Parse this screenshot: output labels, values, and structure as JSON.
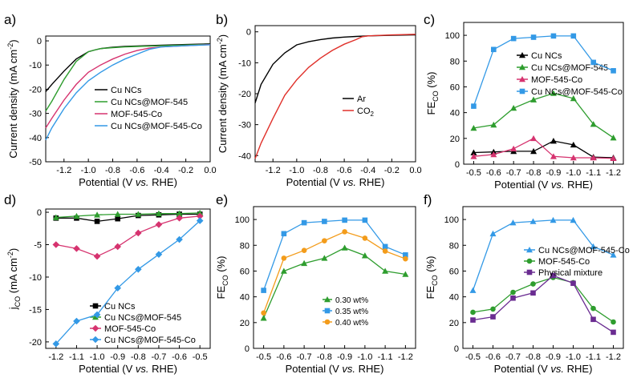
{
  "chart_data": [
    {
      "panel": "a)",
      "type": "line",
      "x_ticks": [
        "-1.2",
        "-1.0",
        "-0.8",
        "-0.6",
        "-0.4",
        "-0.2",
        "0.0"
      ],
      "y_ticks": [
        "0",
        "-10",
        "-20",
        "-30",
        "-40",
        "-50"
      ],
      "xlim": [
        -1.35,
        0.0
      ],
      "ylim": [
        -50,
        2
      ],
      "xlabel": "Potential (V vs. RHE)",
      "ylabel": "Current density (mA cm-2)",
      "legend": "center-left",
      "series": [
        {
          "name": "Cu NCs",
          "color": "#000000",
          "x": [
            -1.35,
            -1.3,
            -1.2,
            -1.1,
            -1.0,
            -0.95,
            -0.9,
            -0.8,
            -0.7,
            -0.6,
            -0.4,
            -0.2,
            0.0
          ],
          "y": [
            -21,
            -18,
            -12.5,
            -7.5,
            -4.5,
            -3.8,
            -3.2,
            -2.6,
            -2.3,
            -2.1,
            -1.8,
            -1.5,
            -1.2
          ]
        },
        {
          "name": "Cu NCs@MOF-545",
          "color": "#2e9d2e",
          "x": [
            -1.35,
            -1.3,
            -1.2,
            -1.1,
            -1.0,
            -0.95,
            -0.9,
            -0.8,
            -0.7,
            -0.6,
            -0.4,
            -0.2,
            0.0
          ],
          "y": [
            -29,
            -25,
            -16,
            -8.5,
            -4.5,
            -3.8,
            -3.2,
            -2.8,
            -2.5,
            -2.3,
            -2.0,
            -1.7,
            -1.4
          ]
        },
        {
          "name": "MOF-545-Co",
          "color": "#d6336f",
          "x": [
            -1.35,
            -1.3,
            -1.2,
            -1.1,
            -1.0,
            -0.9,
            -0.8,
            -0.7,
            -0.6,
            -0.5,
            -0.4,
            -0.2,
            0.0
          ],
          "y": [
            -36,
            -32,
            -24.5,
            -18,
            -13,
            -10,
            -7.5,
            -5.5,
            -4.0,
            -3.0,
            -2.5,
            -2.0,
            -1.5
          ]
        },
        {
          "name": "Cu NCs@MOF-545-Co",
          "color": "#3399e6",
          "x": [
            -1.35,
            -1.3,
            -1.2,
            -1.1,
            -1.0,
            -0.9,
            -0.8,
            -0.7,
            -0.6,
            -0.5,
            -0.4,
            -0.2,
            0.0
          ],
          "y": [
            -41,
            -36,
            -28,
            -21.5,
            -16.5,
            -13,
            -10,
            -7.5,
            -5.5,
            -3.5,
            -2.5,
            -2.0,
            -1.6
          ]
        }
      ]
    },
    {
      "panel": "b)",
      "type": "line",
      "x_ticks": [
        "-1.2",
        "-1.0",
        "-0.8",
        "-0.6",
        "-0.4",
        "-0.2",
        "0.0"
      ],
      "y_ticks": [
        "0",
        "-10",
        "-20",
        "-30",
        "-40"
      ],
      "xlim": [
        -1.35,
        0.0
      ],
      "ylim": [
        -42,
        2
      ],
      "xlabel": "Potential (V vs. RHE)",
      "ylabel": "Current density (mA cm-2)",
      "legend": "bottom-right",
      "series": [
        {
          "name": "Ar",
          "color": "#000000",
          "x": [
            -1.35,
            -1.3,
            -1.2,
            -1.1,
            -1.0,
            -0.9,
            -0.8,
            -0.7,
            -0.6,
            -0.5,
            -0.4,
            -0.2,
            0.0
          ],
          "y": [
            -23,
            -17,
            -10.5,
            -6.8,
            -4.2,
            -3.2,
            -2.5,
            -2.0,
            -1.7,
            -1.5,
            -1.3,
            -1.1,
            -1.0
          ]
        },
        {
          "name": "CO2",
          "color": "#e0302a",
          "x": [
            -1.35,
            -1.3,
            -1.2,
            -1.1,
            -1.0,
            -0.9,
            -0.8,
            -0.7,
            -0.6,
            -0.5,
            -0.45,
            -0.4,
            -0.2,
            0.0
          ],
          "y": [
            -41,
            -36,
            -28,
            -20.5,
            -15.5,
            -11.5,
            -8.5,
            -6.0,
            -4.0,
            -2.5,
            -1.6,
            -1.3,
            -1.0,
            -0.8
          ]
        }
      ]
    },
    {
      "panel": "c)",
      "type": "line",
      "x_ticks": [
        "-0.5",
        "-0.6",
        "-0.7",
        "-0.8",
        "-0.9",
        "-1.0",
        "-1.1",
        "-1.2"
      ],
      "y_ticks": [
        "0",
        "20",
        "40",
        "60",
        "80",
        "100"
      ],
      "ylim": [
        0,
        110
      ],
      "xlabel": "Potential (V vs. RHE)",
      "ylabel": "FE CO (%)",
      "legend": "top-right",
      "series": [
        {
          "name": "Cu NCs",
          "color": "#000000",
          "marker": "triangle",
          "values": [
            9,
            9.5,
            10,
            10,
            18,
            15,
            5.5,
            5
          ]
        },
        {
          "name": "Cu NCs@MOF-545",
          "color": "#2e9d2e",
          "marker": "triangle",
          "values": [
            28,
            30.5,
            43.5,
            50,
            55,
            51,
            31,
            20.5
          ]
        },
        {
          "name": "MOF-545-Co",
          "color": "#d6336f",
          "marker": "triangle",
          "values": [
            6,
            7.5,
            12,
            20,
            6,
            5,
            5,
            4.5
          ]
        },
        {
          "name": "Cu NCs@MOF-545-Co",
          "color": "#3399e6",
          "marker": "square",
          "values": [
            45,
            89,
            97.5,
            98.5,
            99.5,
            99.5,
            79,
            72.5
          ]
        }
      ]
    },
    {
      "panel": "d)",
      "type": "line",
      "x_ticks": [
        "-1.2",
        "-1.1",
        "-1.0",
        "-0.9",
        "-0.8",
        "-0.7",
        "-0.6",
        "-0.5"
      ],
      "y_ticks": [
        "0",
        "-5",
        "-10",
        "-15",
        "-20"
      ],
      "ylim": [
        -21,
        0.5
      ],
      "xlabel": "Potential (V vs. RHE)",
      "ylabel": "jCO (mA cm-2)",
      "legend": "bottom-right",
      "series": [
        {
          "name": "Cu NCs",
          "color": "#000000",
          "marker": "square",
          "values": [
            -0.9,
            -0.9,
            -1.4,
            -1.0,
            -0.5,
            -0.4,
            -0.3,
            -0.3
          ]
        },
        {
          "name": "Cu NCs@MOF-545",
          "color": "#2e9d2e",
          "marker": "triangle",
          "values": [
            -0.8,
            -0.6,
            -0.4,
            -0.3,
            -0.3,
            -0.2,
            -0.2,
            -0.1
          ]
        },
        {
          "name": "MOF-545-Co",
          "color": "#d6336f",
          "marker": "diamond",
          "values": [
            -5.0,
            -5.6,
            -6.8,
            -5.3,
            -3.2,
            -1.9,
            -0.9,
            -0.6
          ]
        },
        {
          "name": "Cu NCs@MOF-545-Co",
          "color": "#3399e6",
          "marker": "diamond",
          "values": [
            -20.3,
            -16.8,
            -15.8,
            -11.7,
            -8.8,
            -6.5,
            -4.2,
            -1.3
          ]
        }
      ]
    },
    {
      "panel": "e)",
      "type": "line",
      "x_ticks": [
        "-0.5",
        "-0.6",
        "-0.7",
        "-0.8",
        "-0.9",
        "-1.0",
        "-1.1",
        "-1.2"
      ],
      "y_ticks": [
        "0",
        "20",
        "40",
        "60",
        "80",
        "100"
      ],
      "ylim": [
        0,
        110
      ],
      "xlabel": "Potential (V vs. RHE)",
      "ylabel": "FE CO (%)",
      "legend": "bottom-center",
      "series": [
        {
          "name": "0.30 wt%",
          "color": "#2e9d2e",
          "marker": "triangle",
          "values": [
            23.5,
            60,
            66,
            70,
            78,
            72,
            60,
            57.5
          ]
        },
        {
          "name": "0.35 wt%",
          "color": "#3399e6",
          "marker": "square",
          "values": [
            45,
            89,
            97.5,
            98.5,
            99.5,
            99.5,
            79,
            72.5
          ]
        },
        {
          "name": "0.40 wt%",
          "color": "#f39c1b",
          "marker": "circle",
          "values": [
            27.5,
            70,
            76,
            83.5,
            90.5,
            85.5,
            75.5,
            69.5
          ]
        }
      ]
    },
    {
      "panel": "f)",
      "type": "line",
      "x_ticks": [
        "-0.5",
        "-0.6",
        "-0.7",
        "-0.8",
        "-0.9",
        "-1.0",
        "-1.1",
        "-1.2"
      ],
      "y_ticks": [
        "0",
        "20",
        "40",
        "60",
        "80",
        "100"
      ],
      "ylim": [
        0,
        110
      ],
      "xlabel": "Potential (V vs. RHE)",
      "ylabel": "FE CO (%)",
      "legend": "center-right",
      "series": [
        {
          "name": "Cu NCs@MOF-545-Co",
          "color": "#3399e6",
          "marker": "triangle",
          "values": [
            45,
            89,
            97.5,
            98.5,
            99.5,
            99.5,
            79,
            72.5
          ]
        },
        {
          "name": "MOF-545-Co",
          "color": "#2e9d2e",
          "marker": "circle",
          "values": [
            28,
            30.5,
            43.5,
            50,
            55,
            51,
            31,
            20.5
          ]
        },
        {
          "name": "Physical mixture",
          "color": "#6a2c91",
          "marker": "square",
          "values": [
            22,
            24.5,
            39,
            43,
            56.5,
            50.5,
            22.5,
            12.5
          ]
        }
      ]
    }
  ]
}
